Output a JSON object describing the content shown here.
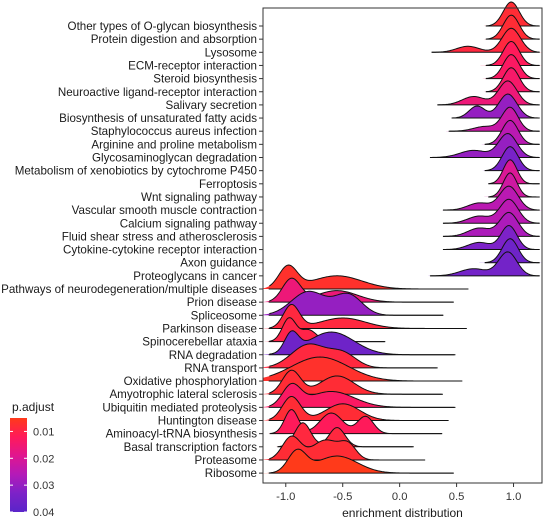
{
  "chart_data": {
    "type": "ridgeline",
    "xlabel": "enrichment distribution",
    "ylabel": "",
    "title": "",
    "xlim": [
      -1.2,
      1.25
    ],
    "xticks": [
      -1.0,
      -0.5,
      0.0,
      0.5,
      1.0
    ],
    "xtick_labels": [
      "-1.0",
      "-0.5",
      "0.0",
      "0.5",
      "1.0"
    ],
    "grid": false,
    "legend": {
      "title": "p.adjust",
      "position": "bottom-left",
      "range": [
        0.005,
        0.04
      ],
      "ticks": [
        0.01,
        0.02,
        0.03,
        0.04
      ],
      "tick_labels": [
        "0.01",
        "0.02",
        "0.03",
        "0.04"
      ],
      "colors": [
        "#ff3a1a",
        "#ff1a5a",
        "#e0168f",
        "#b41ab8",
        "#7d22c8",
        "#5a25c9"
      ]
    },
    "categories": [
      "Other types of O-glycan biosynthesis",
      "Protein digestion and absorption",
      "Lysosome",
      "ECM-receptor interaction",
      "Steroid biosynthesis",
      "Neuroactive ligand-receptor interaction",
      "Salivary secretion",
      "Biosynthesis of unsaturated fatty acids",
      "Staphylococcus aureus infection",
      "Arginine and proline metabolism",
      "Glycosaminoglycan degradation",
      "Metabolism of xenobiotics by cytochrome P450",
      "Ferroptosis",
      "Wnt signaling pathway",
      "Vascular smooth muscle contraction",
      "Calcium signaling pathway",
      "Fluid shear stress and atherosclerosis",
      "Cytokine-cytokine receptor interaction",
      "Axon guidance",
      "Proteoglycans in cancer",
      "Pathways of neurodegeneration/multiple diseases",
      "Prion disease",
      "Spliceosome",
      "Parkinson disease",
      "Spinocerebellar ataxia",
      "RNA degradation",
      "RNA transport",
      "Oxidative phosphorylation",
      "Amyotrophic lateral sclerosis",
      "Ubiquitin mediated proteolysis",
      "Huntington disease",
      "Aminoacyl-tRNA biosynthesis",
      "Basal transcription factors",
      "Proteasome",
      "Ribosome"
    ],
    "series": [
      {
        "p_adjust": 0.008,
        "components": [
          [
            0.98,
            0.07,
            1.0
          ]
        ]
      },
      {
        "p_adjust": 0.008,
        "components": [
          [
            0.98,
            0.07,
            1.0
          ]
        ]
      },
      {
        "p_adjust": 0.009,
        "components": [
          [
            0.98,
            0.08,
            1.0
          ],
          [
            0.6,
            0.1,
            0.25
          ]
        ]
      },
      {
        "p_adjust": 0.012,
        "components": [
          [
            0.98,
            0.07,
            1.0
          ]
        ]
      },
      {
        "p_adjust": 0.013,
        "components": [
          [
            0.98,
            0.07,
            1.0
          ]
        ]
      },
      {
        "p_adjust": 0.014,
        "components": [
          [
            0.98,
            0.07,
            1.0
          ]
        ]
      },
      {
        "p_adjust": 0.016,
        "components": [
          [
            0.95,
            0.08,
            1.0
          ],
          [
            0.65,
            0.1,
            0.35
          ]
        ]
      },
      {
        "p_adjust": 0.03,
        "components": [
          [
            0.95,
            0.08,
            1.0
          ],
          [
            0.68,
            0.07,
            0.5
          ]
        ]
      },
      {
        "p_adjust": 0.023,
        "components": [
          [
            0.97,
            0.07,
            1.0
          ],
          [
            0.75,
            0.1,
            0.2
          ]
        ]
      },
      {
        "p_adjust": 0.025,
        "components": [
          [
            0.97,
            0.07,
            1.0
          ]
        ]
      },
      {
        "p_adjust": 0.03,
        "components": [
          [
            0.95,
            0.08,
            1.0
          ],
          [
            0.65,
            0.12,
            0.3
          ]
        ]
      },
      {
        "p_adjust": 0.034,
        "components": [
          [
            0.97,
            0.07,
            1.0
          ]
        ]
      },
      {
        "p_adjust": 0.02,
        "components": [
          [
            0.97,
            0.06,
            1.0
          ]
        ]
      },
      {
        "p_adjust": 0.022,
        "components": [
          [
            0.97,
            0.06,
            1.0
          ]
        ]
      },
      {
        "p_adjust": 0.025,
        "components": [
          [
            0.96,
            0.08,
            1.0
          ],
          [
            0.7,
            0.1,
            0.3
          ]
        ]
      },
      {
        "p_adjust": 0.025,
        "components": [
          [
            0.96,
            0.08,
            1.0
          ],
          [
            0.7,
            0.1,
            0.3
          ]
        ]
      },
      {
        "p_adjust": 0.027,
        "components": [
          [
            0.96,
            0.08,
            1.0
          ],
          [
            0.7,
            0.1,
            0.35
          ]
        ]
      },
      {
        "p_adjust": 0.033,
        "components": [
          [
            0.96,
            0.07,
            1.0
          ],
          [
            0.7,
            0.1,
            0.3
          ]
        ]
      },
      {
        "p_adjust": 0.036,
        "components": [
          [
            0.97,
            0.07,
            1.0
          ]
        ]
      },
      {
        "p_adjust": 0.035,
        "components": [
          [
            0.95,
            0.08,
            1.0
          ],
          [
            0.65,
            0.12,
            0.3
          ]
        ]
      },
      {
        "p_adjust": 0.007,
        "components": [
          [
            -0.98,
            0.08,
            1.0
          ],
          [
            -0.55,
            0.22,
            0.6
          ]
        ]
      },
      {
        "p_adjust": 0.016,
        "components": [
          [
            -0.95,
            0.08,
            1.0
          ],
          [
            -0.55,
            0.18,
            0.5
          ]
        ]
      },
      {
        "p_adjust": 0.03,
        "components": [
          [
            -0.8,
            0.15,
            0.7
          ],
          [
            -0.45,
            0.12,
            0.6
          ]
        ]
      },
      {
        "p_adjust": 0.009,
        "components": [
          [
            -0.95,
            0.07,
            1.0
          ],
          [
            -0.5,
            0.2,
            0.45
          ]
        ]
      },
      {
        "p_adjust": 0.01,
        "components": [
          [
            -0.97,
            0.06,
            1.0
          ],
          [
            -0.8,
            0.07,
            0.5
          ]
        ]
      },
      {
        "p_adjust": 0.036,
        "components": [
          [
            -0.95,
            0.06,
            0.5
          ],
          [
            -0.6,
            0.2,
            0.6
          ]
        ]
      },
      {
        "p_adjust": 0.009,
        "components": [
          [
            -0.8,
            0.15,
            1.0
          ],
          [
            -0.5,
            0.12,
            0.6
          ]
        ]
      },
      {
        "p_adjust": 0.007,
        "components": [
          [
            -0.7,
            0.25,
            1.0
          ]
        ]
      },
      {
        "p_adjust": 0.008,
        "components": [
          [
            -0.95,
            0.08,
            0.9
          ],
          [
            -0.55,
            0.15,
            0.7
          ]
        ]
      },
      {
        "p_adjust": 0.013,
        "components": [
          [
            -0.95,
            0.08,
            0.9
          ],
          [
            -0.6,
            0.2,
            0.7
          ]
        ]
      },
      {
        "p_adjust": 0.008,
        "components": [
          [
            -0.95,
            0.08,
            1.0
          ],
          [
            -0.5,
            0.15,
            0.7
          ]
        ]
      },
      {
        "p_adjust": 0.012,
        "components": [
          [
            -0.95,
            0.06,
            0.7
          ],
          [
            -0.6,
            0.1,
            0.6
          ],
          [
            -0.3,
            0.07,
            0.5
          ]
        ]
      },
      {
        "p_adjust": 0.009,
        "components": [
          [
            -0.85,
            0.07,
            1.0
          ],
          [
            -0.55,
            0.07,
            0.8
          ]
        ]
      },
      {
        "p_adjust": 0.008,
        "components": [
          [
            -0.95,
            0.08,
            0.7
          ],
          [
            -0.65,
            0.12,
            0.6
          ],
          [
            -0.45,
            0.07,
            0.4
          ]
        ]
      },
      {
        "p_adjust": 0.005,
        "components": [
          [
            -0.9,
            0.08,
            1.0
          ],
          [
            -0.55,
            0.18,
            0.8
          ]
        ]
      }
    ]
  }
}
